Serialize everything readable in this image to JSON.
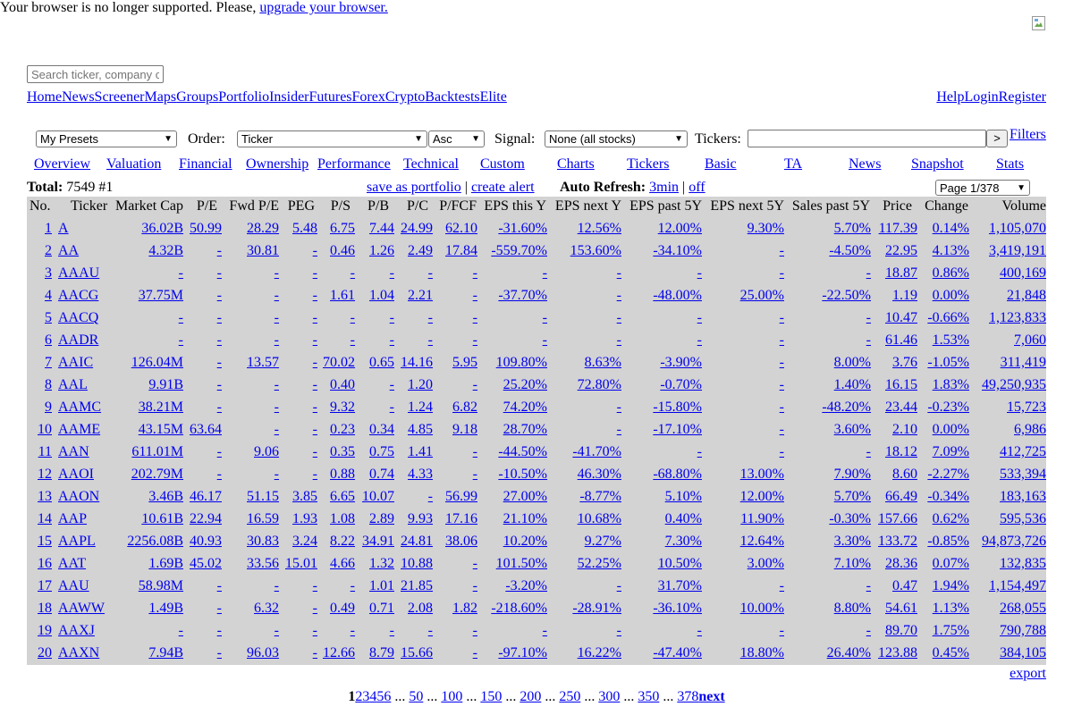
{
  "notice": {
    "text": "Your browser is no longer supported. Please, ",
    "link": "upgrade your browser."
  },
  "search": {
    "placeholder": "Search ticker, company or profile"
  },
  "nav": {
    "left": [
      "Home",
      "News",
      "Screener",
      "Maps",
      "Groups",
      "Portfolio",
      "Insider",
      "Futures",
      "Forex",
      "Crypto",
      "Backtests",
      "Elite"
    ],
    "right": [
      "Help",
      "Login",
      "Register"
    ]
  },
  "controls": {
    "presets": "My Presets",
    "order_label": "Order:",
    "order": "Ticker",
    "direction": "Asc",
    "signal_label": "Signal:",
    "signal": "None (all stocks)",
    "tickers_label": "Tickers:",
    "tickers_value": "",
    "go_label": ">",
    "filters": "Filters"
  },
  "tabs": [
    "Overview",
    "Valuation",
    "Financial",
    "Ownership",
    "Performance",
    "Technical",
    "Custom",
    "Charts",
    "Tickers",
    "Basic",
    "TA",
    "News",
    "Snapshot",
    "Stats"
  ],
  "summary": {
    "total_label": "Total:",
    "total_value": "7549 #1",
    "save_portfolio": "save as portfolio",
    "separator": "|",
    "create_alert": "create alert",
    "auto_refresh_label": "Auto Refresh:",
    "refresh_3min": "3min",
    "refresh_off": "off",
    "page": "Page 1/378"
  },
  "table": {
    "headers": [
      "No.",
      "Ticker",
      "Market Cap",
      "P/E",
      "Fwd P/E",
      "PEG",
      "P/S",
      "P/B",
      "P/C",
      "P/FCF",
      "EPS this Y",
      "EPS next Y",
      "EPS past 5Y",
      "EPS next 5Y",
      "Sales past 5Y",
      "Price",
      "Change",
      "Volume"
    ],
    "rows": [
      [
        "1",
        "A",
        "36.02B",
        "50.99",
        "28.29",
        "5.48",
        "6.75",
        "7.44",
        "24.99",
        "62.10",
        "-31.60%",
        "12.56%",
        "12.00%",
        "9.30%",
        "5.70%",
        "117.39",
        "0.14%",
        "1,105,070"
      ],
      [
        "2",
        "AA",
        "4.32B",
        "-",
        "30.81",
        "-",
        "0.46",
        "1.26",
        "2.49",
        "17.84",
        "-559.70%",
        "153.60%",
        "-34.10%",
        "-",
        "-4.50%",
        "22.95",
        "4.13%",
        "3,419,191"
      ],
      [
        "3",
        "AAAU",
        "-",
        "-",
        "-",
        "-",
        "-",
        "-",
        "-",
        "-",
        "-",
        "-",
        "-",
        "-",
        "-",
        "18.87",
        "0.86%",
        "400,169"
      ],
      [
        "4",
        "AACG",
        "37.75M",
        "-",
        "-",
        "-",
        "1.61",
        "1.04",
        "2.21",
        "-",
        "-37.70%",
        "-",
        "-48.00%",
        "25.00%",
        "-22.50%",
        "1.19",
        "0.00%",
        "21,848"
      ],
      [
        "5",
        "AACQ",
        "-",
        "-",
        "-",
        "-",
        "-",
        "-",
        "-",
        "-",
        "-",
        "-",
        "-",
        "-",
        "-",
        "10.47",
        "-0.66%",
        "1,123,833"
      ],
      [
        "6",
        "AADR",
        "-",
        "-",
        "-",
        "-",
        "-",
        "-",
        "-",
        "-",
        "-",
        "-",
        "-",
        "-",
        "-",
        "61.46",
        "1.53%",
        "7,060"
      ],
      [
        "7",
        "AAIC",
        "126.04M",
        "-",
        "13.57",
        "-",
        "70.02",
        "0.65",
        "14.16",
        "5.95",
        "109.80%",
        "8.63%",
        "-3.90%",
        "-",
        "8.00%",
        "3.76",
        "-1.05%",
        "311,419"
      ],
      [
        "8",
        "AAL",
        "9.91B",
        "-",
        "-",
        "-",
        "0.40",
        "-",
        "1.20",
        "-",
        "25.20%",
        "72.80%",
        "-0.70%",
        "-",
        "1.40%",
        "16.15",
        "1.83%",
        "49,250,935"
      ],
      [
        "9",
        "AAMC",
        "38.21M",
        "-",
        "-",
        "-",
        "9.32",
        "-",
        "1.24",
        "6.82",
        "74.20%",
        "-",
        "-15.80%",
        "-",
        "-48.20%",
        "23.44",
        "-0.23%",
        "15,723"
      ],
      [
        "10",
        "AAME",
        "43.15M",
        "63.64",
        "-",
        "-",
        "0.23",
        "0.34",
        "4.85",
        "9.18",
        "28.70%",
        "-",
        "-17.10%",
        "-",
        "3.60%",
        "2.10",
        "0.00%",
        "6,986"
      ],
      [
        "11",
        "AAN",
        "611.01M",
        "-",
        "9.06",
        "-",
        "0.35",
        "0.75",
        "1.41",
        "-",
        "-44.50%",
        "-41.70%",
        "-",
        "-",
        "-",
        "18.12",
        "7.09%",
        "412,725"
      ],
      [
        "12",
        "AAOI",
        "202.79M",
        "-",
        "-",
        "-",
        "0.88",
        "0.74",
        "4.33",
        "-",
        "-10.50%",
        "46.30%",
        "-68.80%",
        "13.00%",
        "7.90%",
        "8.60",
        "-2.27%",
        "533,394"
      ],
      [
        "13",
        "AAON",
        "3.46B",
        "46.17",
        "51.15",
        "3.85",
        "6.65",
        "10.07",
        "-",
        "56.99",
        "27.00%",
        "-8.77%",
        "5.10%",
        "12.00%",
        "5.70%",
        "66.49",
        "-0.34%",
        "183,163"
      ],
      [
        "14",
        "AAP",
        "10.61B",
        "22.94",
        "16.59",
        "1.93",
        "1.08",
        "2.89",
        "9.93",
        "17.16",
        "21.10%",
        "10.68%",
        "0.40%",
        "11.90%",
        "-0.30%",
        "157.66",
        "0.62%",
        "595,536"
      ],
      [
        "15",
        "AAPL",
        "2256.08B",
        "40.93",
        "30.83",
        "3.24",
        "8.22",
        "34.91",
        "24.81",
        "38.06",
        "10.20%",
        "9.27%",
        "7.30%",
        "12.64%",
        "3.30%",
        "133.72",
        "-0.85%",
        "94,873,726"
      ],
      [
        "16",
        "AAT",
        "1.69B",
        "45.02",
        "33.56",
        "15.01",
        "4.66",
        "1.32",
        "10.88",
        "-",
        "101.50%",
        "52.25%",
        "10.50%",
        "3.00%",
        "7.10%",
        "28.36",
        "0.07%",
        "132,835"
      ],
      [
        "17",
        "AAU",
        "58.98M",
        "-",
        "-",
        "-",
        "-",
        "1.01",
        "21.85",
        "-",
        "-3.20%",
        "-",
        "31.70%",
        "-",
        "-",
        "0.47",
        "1.94%",
        "1,154,497"
      ],
      [
        "18",
        "AAWW",
        "1.49B",
        "-",
        "6.32",
        "-",
        "0.49",
        "0.71",
        "2.08",
        "1.82",
        "-218.60%",
        "-28.91%",
        "-36.10%",
        "10.00%",
        "8.80%",
        "54.61",
        "1.13%",
        "268,055"
      ],
      [
        "19",
        "AAXJ",
        "-",
        "-",
        "-",
        "-",
        "-",
        "-",
        "-",
        "-",
        "-",
        "-",
        "-",
        "-",
        "-",
        "89.70",
        "1.75%",
        "790,788"
      ],
      [
        "20",
        "AAXN",
        "7.94B",
        "-",
        "96.03",
        "-",
        "12.66",
        "8.79",
        "15.66",
        "-",
        "-97.10%",
        "16.22%",
        "-47.40%",
        "18.80%",
        "26.40%",
        "123.88",
        "0.45%",
        "384,105"
      ]
    ]
  },
  "export": "export",
  "pager": {
    "current": "1",
    "pages": [
      "2",
      "3",
      "4",
      "5",
      "6"
    ],
    "ellipsis": "...",
    "jumps": [
      "50",
      "100",
      "150",
      "200",
      "250",
      "300",
      "350",
      "378"
    ],
    "next": "next"
  }
}
